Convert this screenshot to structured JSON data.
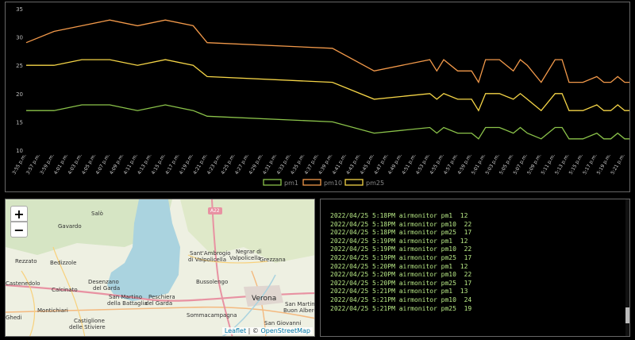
{
  "chart_data": {
    "type": "line",
    "ylim": [
      10,
      35
    ],
    "yticks": [
      10,
      15,
      20,
      25,
      30,
      35
    ],
    "legend_position": "bottom",
    "grid": false,
    "x": [
      "3:55 p.m.",
      "3:57 p.m.",
      "3:59 p.m.",
      "4:01 p.m.",
      "4:03 p.m.",
      "4:05 p.m.",
      "4:07 p.m.",
      "4:09 p.m.",
      "4:11 p.m.",
      "4:13 p.m.",
      "4:15 p.m.",
      "4:17 p.m.",
      "4:19 p.m.",
      "4:21 p.m.",
      "4:23 p.m.",
      "4:25 p.m.",
      "4:27 p.m.",
      "4:29 p.m.",
      "4:31 p.m.",
      "4:33 p.m.",
      "4:35 p.m.",
      "4:37 p.m.",
      "4:39 p.m.",
      "4:41 p.m.",
      "4:43 p.m.",
      "4:45 p.m.",
      "4:47 p.m.",
      "4:49 p.m.",
      "4:51 p.m.",
      "4:53 p.m.",
      "4:55 p.m.",
      "4:57 p.m.",
      "4:59 p.m.",
      "5:01 p.m.",
      "5:03 p.m.",
      "5:05 p.m.",
      "5:07 p.m.",
      "5:09 p.m.",
      "5:11 p.m.",
      "5:13 p.m.",
      "5:15 p.m.",
      "5:17 p.m.",
      "5:19 p.m.",
      "5:21 p.m."
    ],
    "series": [
      {
        "name": "pm1",
        "color": "#8bc34a",
        "points": [
          [
            0,
            17
          ],
          [
            2,
            17
          ],
          [
            4,
            18
          ],
          [
            6,
            18
          ],
          [
            8,
            17
          ],
          [
            10,
            18
          ],
          [
            12,
            17
          ],
          [
            13,
            16
          ],
          [
            22,
            15
          ],
          [
            25,
            13
          ],
          [
            29,
            14
          ],
          [
            29.5,
            13
          ],
          [
            30,
            14
          ],
          [
            31,
            13
          ],
          [
            32,
            13
          ],
          [
            32.5,
            12
          ],
          [
            33,
            14
          ],
          [
            34,
            14
          ],
          [
            35,
            13
          ],
          [
            35.5,
            14
          ],
          [
            36,
            13
          ],
          [
            37,
            12
          ],
          [
            38,
            14
          ],
          [
            38.5,
            14
          ],
          [
            39,
            12
          ],
          [
            40,
            12
          ],
          [
            41,
            13
          ],
          [
            41.5,
            12
          ],
          [
            42,
            12
          ],
          [
            42.5,
            13
          ],
          [
            43,
            12
          ],
          [
            44,
            12
          ],
          [
            45,
            12
          ],
          [
            46,
            12
          ],
          [
            47,
            12
          ],
          [
            47.5,
            13
          ]
        ]
      },
      {
        "name": "pm10",
        "color": "#f2994a",
        "points": [
          [
            0,
            29
          ],
          [
            2,
            31
          ],
          [
            4,
            32
          ],
          [
            6,
            33
          ],
          [
            8,
            32
          ],
          [
            10,
            33
          ],
          [
            12,
            32
          ],
          [
            13,
            29
          ],
          [
            22,
            28
          ],
          [
            25,
            24
          ],
          [
            29,
            26
          ],
          [
            29.5,
            24
          ],
          [
            30,
            26
          ],
          [
            31,
            24
          ],
          [
            32,
            24
          ],
          [
            32.5,
            22
          ],
          [
            33,
            26
          ],
          [
            34,
            26
          ],
          [
            35,
            24
          ],
          [
            35.5,
            26
          ],
          [
            36,
            25
          ],
          [
            37,
            22
          ],
          [
            38,
            26
          ],
          [
            38.5,
            26
          ],
          [
            39,
            22
          ],
          [
            40,
            22
          ],
          [
            41,
            23
          ],
          [
            41.5,
            22
          ],
          [
            42,
            22
          ],
          [
            42.5,
            23
          ],
          [
            43,
            22
          ],
          [
            44,
            22
          ],
          [
            45,
            22
          ],
          [
            46,
            22
          ],
          [
            47,
            22
          ],
          [
            47.5,
            24
          ]
        ]
      },
      {
        "name": "pm25",
        "color": "#f5d547",
        "points": [
          [
            0,
            25
          ],
          [
            2,
            25
          ],
          [
            4,
            26
          ],
          [
            6,
            26
          ],
          [
            8,
            25
          ],
          [
            10,
            26
          ],
          [
            12,
            25
          ],
          [
            13,
            23
          ],
          [
            22,
            22
          ],
          [
            25,
            19
          ],
          [
            29,
            20
          ],
          [
            29.5,
            19
          ],
          [
            30,
            20
          ],
          [
            31,
            19
          ],
          [
            32,
            19
          ],
          [
            32.5,
            17
          ],
          [
            33,
            20
          ],
          [
            34,
            20
          ],
          [
            35,
            19
          ],
          [
            35.5,
            20
          ],
          [
            36,
            19
          ],
          [
            37,
            17
          ],
          [
            38,
            20
          ],
          [
            38.5,
            20
          ],
          [
            39,
            17
          ],
          [
            40,
            17
          ],
          [
            41,
            18
          ],
          [
            41.5,
            17
          ],
          [
            42,
            17
          ],
          [
            42.5,
            18
          ],
          [
            43,
            17
          ],
          [
            44,
            17
          ],
          [
            45,
            17
          ],
          [
            46,
            17
          ],
          [
            47,
            17
          ],
          [
            47.5,
            19
          ]
        ]
      }
    ]
  },
  "map": {
    "zoom_in_label": "+",
    "zoom_out_label": "−",
    "attribution_leaflet": "Leaflet",
    "attribution_sep": " | © ",
    "attribution_osm": "OpenStreetMap",
    "places": [
      {
        "name": "Salò",
        "cls": ""
      },
      {
        "name": "Gavardo",
        "cls": ""
      },
      {
        "name": "Rezzato",
        "cls": ""
      },
      {
        "name": "Bedizzole",
        "cls": ""
      },
      {
        "name": "Castenedolo",
        "cls": ""
      },
      {
        "name": "Calcinato",
        "cls": ""
      },
      {
        "name": "Desenzano",
        "cls": ""
      },
      {
        "name": "del Garda",
        "cls": ""
      },
      {
        "name": "San Martino",
        "cls": ""
      },
      {
        "name": "della Battaglia",
        "cls": ""
      },
      {
        "name": "Peschiera",
        "cls": ""
      },
      {
        "name": "del Garda",
        "cls": ""
      },
      {
        "name": "Montichiari",
        "cls": ""
      },
      {
        "name": "Castiglione",
        "cls": ""
      },
      {
        "name": "delle Stiviere",
        "cls": ""
      },
      {
        "name": "Ghedi",
        "cls": ""
      },
      {
        "name": "Sant'Ambrogio",
        "cls": ""
      },
      {
        "name": "di Valpolicella",
        "cls": ""
      },
      {
        "name": "Negrar di",
        "cls": ""
      },
      {
        "name": "Valpolicella",
        "cls": ""
      },
      {
        "name": "Grezzana",
        "cls": ""
      },
      {
        "name": "Bussolengo",
        "cls": ""
      },
      {
        "name": "Verona",
        "cls": "big"
      },
      {
        "name": "San Martino",
        "cls": ""
      },
      {
        "name": "Buon Albergo",
        "cls": ""
      },
      {
        "name": "Sommacampagna",
        "cls": ""
      },
      {
        "name": "San Giovanni",
        "cls": ""
      },
      {
        "name": "A22",
        "cls": ""
      }
    ]
  },
  "log": {
    "lines": [
      "2022/04/25 5:18PM airmonitor pm1  12",
      "2022/04/25 5:18PM airmonitor pm10  22",
      "2022/04/25 5:18PM airmonitor pm25  17",
      "2022/04/25 5:19PM airmonitor pm1  12",
      "2022/04/25 5:19PM airmonitor pm10  22",
      "2022/04/25 5:19PM airmonitor pm25  17",
      "2022/04/25 5:20PM airmonitor pm1  12",
      "2022/04/25 5:20PM airmonitor pm10  22",
      "2022/04/25 5:20PM airmonitor pm25  17",
      "2022/04/25 5:21PM airmonitor pm1  13",
      "2022/04/25 5:21PM airmonitor pm10  24",
      "2022/04/25 5:21PM airmonitor pm25  19"
    ]
  }
}
